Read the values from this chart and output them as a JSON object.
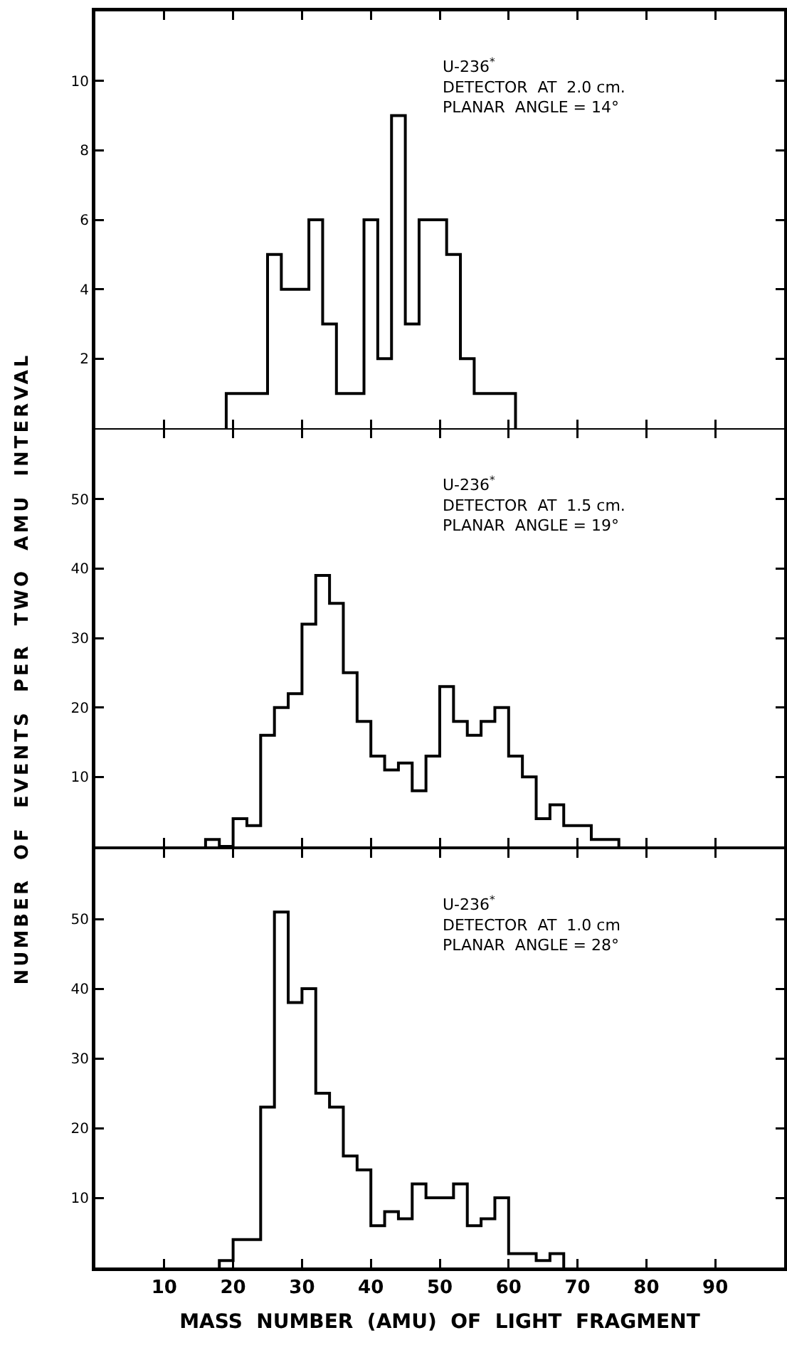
{
  "chart_data": [
    {
      "type": "histogram",
      "color": "#000000",
      "bins": [
        19,
        21,
        23,
        25,
        27,
        29,
        31,
        33,
        35,
        37,
        39,
        41,
        43,
        45,
        47,
        49,
        51,
        53,
        55,
        57,
        59,
        61
      ],
      "values": [
        1,
        1,
        1,
        5,
        4,
        4,
        6,
        3,
        1,
        1,
        6,
        2,
        9,
        3,
        6,
        6,
        5,
        2,
        1,
        1,
        1
      ],
      "xlim": [
        0,
        100
      ],
      "xticks": [
        10,
        20,
        30,
        40,
        50,
        60,
        70,
        80,
        90
      ],
      "ylim": [
        0,
        12
      ],
      "yticks": [
        2,
        4,
        6,
        8,
        10
      ],
      "tick_labels": "y",
      "annotations": [
        "U-236$^{*}$",
        "DETECTOR  AT  2.0 cm.",
        "PLANAR  ANGLE = 14°"
      ]
    },
    {
      "type": "histogram",
      "color": "#000000",
      "ylabel": "NUMBER OF EVENTS PER TWO AMU INTERVAL",
      "bins": [
        16,
        18,
        20,
        22,
        24,
        26,
        28,
        30,
        32,
        34,
        36,
        38,
        40,
        42,
        44,
        46,
        48,
        50,
        52,
        54,
        56,
        58,
        60,
        62,
        64,
        66,
        68,
        70,
        72,
        74,
        76
      ],
      "values": [
        1,
        0,
        4,
        3,
        16,
        20,
        22,
        32,
        39,
        35,
        25,
        18,
        13,
        11,
        12,
        8,
        13,
        23,
        18,
        16,
        18,
        20,
        13,
        10,
        4,
        6,
        3,
        3,
        1,
        1
      ],
      "xlim": [
        0,
        100
      ],
      "xticks": [
        10,
        20,
        30,
        40,
        50,
        60,
        70,
        80,
        90
      ],
      "ylim": [
        0,
        60
      ],
      "yticks": [
        10,
        20,
        30,
        40,
        50
      ],
      "tick_labels": "y",
      "annotations": [
        "U-236$^{*}$",
        "DETECTOR  AT  1.5 cm.",
        "PLANAR  ANGLE = 19°"
      ]
    },
    {
      "type": "histogram",
      "color": "#000000",
      "xlabel": "MASS  NUMBER  (AMU)  OF  LIGHT  FRAGMENT",
      "bins": [
        18,
        20,
        22,
        24,
        26,
        28,
        30,
        32,
        34,
        36,
        38,
        40,
        42,
        44,
        46,
        48,
        50,
        52,
        54,
        56,
        58,
        60,
        62,
        64,
        66,
        68
      ],
      "values": [
        1,
        4,
        4,
        23,
        51,
        38,
        40,
        25,
        23,
        16,
        14,
        6,
        8,
        7,
        12,
        10,
        10,
        12,
        6,
        7,
        10,
        2,
        2,
        1,
        2
      ],
      "xlim": [
        0,
        100
      ],
      "xticks": [
        10,
        20,
        30,
        40,
        50,
        60,
        70,
        80,
        90
      ],
      "ylim": [
        0,
        60
      ],
      "yticks": [
        10,
        20,
        30,
        40,
        50
      ],
      "annotations": [
        "U-236$^{*}$",
        "DETECTOR  AT  1.0 cm",
        "PLANAR  ANGLE = 28°"
      ]
    }
  ]
}
